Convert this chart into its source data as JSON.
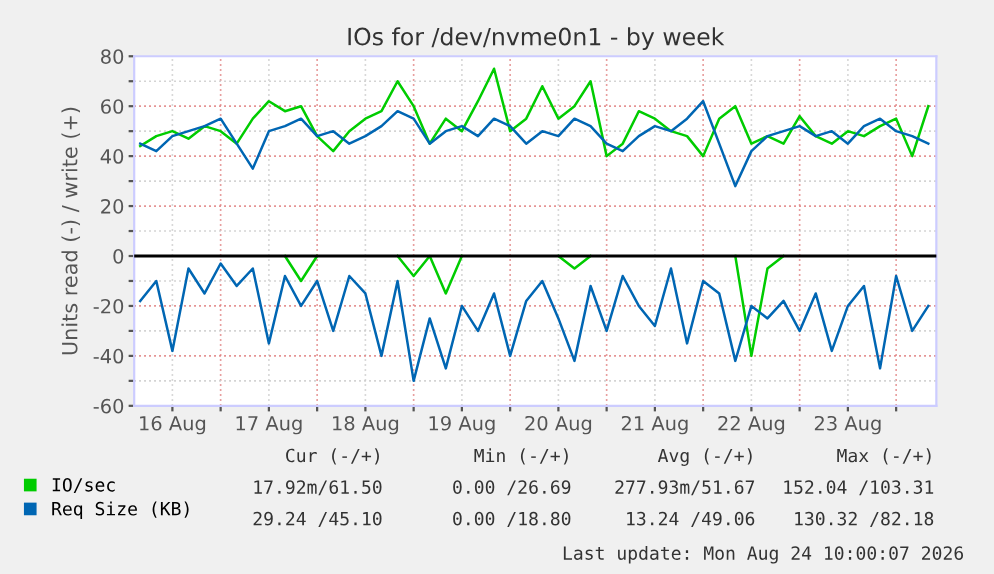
{
  "chart_data": {
    "type": "line",
    "title": "IOs for /dev/nvme0n1 - by week",
    "ylabel": "Units read (-) / write (+)",
    "x": [
      "2026-08-16T04:00",
      "2026-08-16T08:00",
      "2026-08-16T12:00",
      "2026-08-16T16:00",
      "2026-08-16T20:00",
      "2026-08-17T00:00",
      "2026-08-17T04:00",
      "2026-08-17T08:00",
      "2026-08-17T12:00",
      "2026-08-17T16:00",
      "2026-08-17T20:00",
      "2026-08-18T00:00",
      "2026-08-18T04:00",
      "2026-08-18T08:00",
      "2026-08-18T12:00",
      "2026-08-18T16:00",
      "2026-08-18T20:00",
      "2026-08-19T00:00",
      "2026-08-19T04:00",
      "2026-08-19T08:00",
      "2026-08-19T12:00",
      "2026-08-19T16:00",
      "2026-08-19T20:00",
      "2026-08-20T00:00",
      "2026-08-20T04:00",
      "2026-08-20T08:00",
      "2026-08-20T12:00",
      "2026-08-20T16:00",
      "2026-08-20T20:00",
      "2026-08-21T00:00",
      "2026-08-21T04:00",
      "2026-08-21T08:00",
      "2026-08-21T12:00",
      "2026-08-21T16:00",
      "2026-08-21T20:00",
      "2026-08-22T00:00",
      "2026-08-22T04:00",
      "2026-08-22T08:00",
      "2026-08-22T12:00",
      "2026-08-22T16:00",
      "2026-08-22T20:00",
      "2026-08-23T00:00",
      "2026-08-23T04:00",
      "2026-08-23T08:00",
      "2026-08-23T12:00",
      "2026-08-23T16:00",
      "2026-08-23T20:00",
      "2026-08-24T00:00",
      "2026-08-24T04:00",
      "2026-08-24T08:00"
    ],
    "series": [
      {
        "name": "IO/sec",
        "color": "#00cc00",
        "values": [
          44,
          48,
          50,
          47,
          52,
          50,
          45,
          55,
          62,
          58,
          60,
          48,
          42,
          50,
          55,
          58,
          70,
          60,
          45,
          55,
          50,
          62,
          75,
          50,
          55,
          68,
          55,
          60,
          70,
          40,
          45,
          58,
          55,
          50,
          48,
          40,
          55,
          60,
          45,
          48,
          45,
          56,
          48,
          45,
          50,
          48,
          52,
          55,
          40,
          60
        ]
      },
      {
        "color": "#00cc00",
        "values": [
          null,
          null,
          null,
          null,
          null,
          null,
          null,
          null,
          null,
          0,
          -10,
          0,
          null,
          null,
          null,
          null,
          0,
          -8,
          0,
          -15,
          0,
          null,
          null,
          null,
          null,
          null,
          0,
          -5,
          0,
          null,
          null,
          null,
          null,
          null,
          null,
          null,
          null,
          0,
          -40,
          -5,
          0,
          null,
          null,
          null,
          null,
          null,
          null,
          null,
          null,
          null
        ]
      },
      {
        "name": "Req Size (KB)",
        "color": "#0066b3",
        "values": [
          45,
          42,
          48,
          50,
          52,
          55,
          45,
          35,
          50,
          52,
          55,
          48,
          50,
          45,
          48,
          52,
          58,
          55,
          45,
          50,
          52,
          48,
          55,
          52,
          45,
          50,
          48,
          55,
          52,
          45,
          42,
          48,
          52,
          50,
          55,
          62,
          45,
          28,
          42,
          48,
          50,
          52,
          48,
          50,
          45,
          52,
          55,
          50,
          48,
          45
        ]
      },
      {
        "color": "#0066b3",
        "values": [
          -18,
          -10,
          -38,
          -5,
          -15,
          -3,
          -12,
          -5,
          -35,
          -8,
          -20,
          -10,
          -30,
          -8,
          -15,
          -40,
          -10,
          -50,
          -25,
          -45,
          -20,
          -30,
          -15,
          -40,
          -18,
          -10,
          -25,
          -42,
          -12,
          -30,
          -8,
          -20,
          -28,
          -5,
          -35,
          -10,
          -15,
          -42,
          -20,
          -25,
          -18,
          -30,
          -15,
          -38,
          -20,
          -12,
          -45,
          -8,
          -30,
          -20
        ]
      }
    ],
    "xlim": [
      "2026-08-16T02:30",
      "2026-08-24T10:00"
    ],
    "xticks": [
      {
        "value": "2026-08-16T12:00",
        "label": "16 Aug"
      },
      {
        "value": "2026-08-17T00:00",
        "label": null
      },
      {
        "value": "2026-08-17T12:00",
        "label": "17 Aug"
      },
      {
        "value": "2026-08-18T00:00",
        "label": null
      },
      {
        "value": "2026-08-18T12:00",
        "label": "18 Aug"
      },
      {
        "value": "2026-08-19T00:00",
        "label": null
      },
      {
        "value": "2026-08-19T12:00",
        "label": "19 Aug"
      },
      {
        "value": "2026-08-20T00:00",
        "label": null
      },
      {
        "value": "2026-08-20T12:00",
        "label": "20 Aug"
      },
      {
        "value": "2026-08-21T00:00",
        "label": null
      },
      {
        "value": "2026-08-21T12:00",
        "label": "21 Aug"
      },
      {
        "value": "2026-08-22T00:00",
        "label": null
      },
      {
        "value": "2026-08-22T12:00",
        "label": "22 Aug"
      },
      {
        "value": "2026-08-23T00:00",
        "label": null
      },
      {
        "value": "2026-08-23T12:00",
        "label": "23 Aug"
      },
      {
        "value": "2026-08-24T00:00",
        "label": null
      }
    ],
    "ylim": [
      -60,
      80
    ],
    "yticks": [
      -60,
      {
        "value": -50,
        "label": null
      },
      -40,
      {
        "value": -30,
        "label": null
      },
      -20,
      {
        "value": -10,
        "label": null
      },
      0,
      {
        "value": 10,
        "label": null
      },
      20,
      {
        "value": 30,
        "label": null
      },
      40,
      {
        "value": 50,
        "label": null
      },
      60,
      {
        "value": 70,
        "label": null
      },
      80
    ],
    "ref_lines": [
      {
        "axis": "y",
        "value": 0,
        "color": "#000000"
      }
    ],
    "grid": true,
    "legend": "bottom left",
    "marker": "none",
    "line_style": "solid",
    "annotations": [
      "Cur (-/+)",
      "Min (-/+)",
      "Avg (-/+)",
      "Max (-/+)",
      "17.92m/61.50",
      "0.00 /26.69",
      "277.93m/51.67",
      "152.04 /103.31",
      "29.24 /45.10",
      "0.00 /18.80",
      "13.24 /49.06",
      "130.32 /82.18",
      "Last update: Mon Aug 24 10:00:07 2026"
    ]
  }
}
